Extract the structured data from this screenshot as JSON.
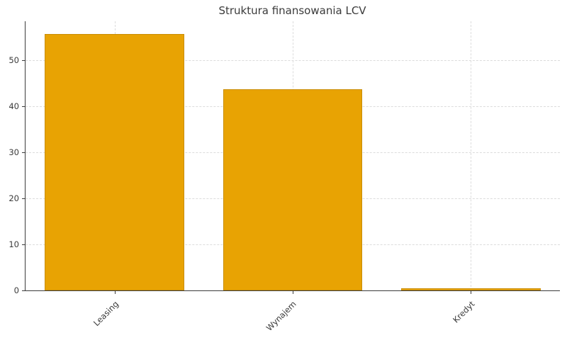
{
  "figure": {
    "background": "#ffffff"
  },
  "chart_data": {
    "type": "bar",
    "title": "Struktura finansowania LCV",
    "categories": [
      "Leasing",
      "Wynajem",
      "Kredyt"
    ],
    "values": [
      55.7,
      43.7,
      0.5
    ],
    "xlabel": "",
    "ylabel": "",
    "ylim": [
      0,
      58.5
    ],
    "yticks": [
      0,
      10,
      20,
      30,
      40,
      50
    ],
    "grid": true,
    "grid_style": "dashed",
    "legend": "none",
    "x_tick_label_rotation_deg": 45,
    "colors": {
      "bar_fill": "#E8A303",
      "bar_edge": "#C98D05",
      "axis": "#3b3b3b",
      "grid": "#dcdcdc",
      "text": "#3b3b3b"
    }
  }
}
